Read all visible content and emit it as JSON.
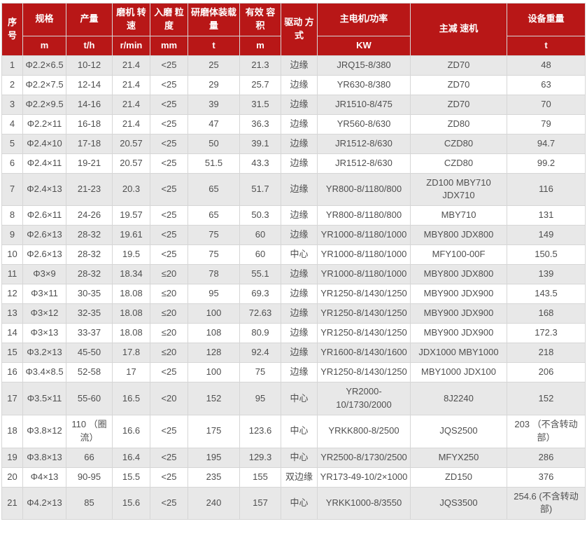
{
  "table": {
    "colors": {
      "header_bg": "#b81717",
      "header_text": "#ffffff",
      "row_alt_bg": "#e8e8e8",
      "row_bg": "#ffffff",
      "border": "#d6d6d6",
      "body_text": "#4f4f4f"
    },
    "columns": [
      {
        "key": "index",
        "label": "序号",
        "unit": ""
      },
      {
        "key": "spec",
        "label": "规格",
        "unit": "m"
      },
      {
        "key": "output",
        "label": "产量",
        "unit": "t/h"
      },
      {
        "key": "mill-speed",
        "label": "磨机 转速",
        "unit": "r/min"
      },
      {
        "key": "feed-size",
        "label": "入磨 粒度",
        "unit": "mm"
      },
      {
        "key": "media-load",
        "label": "研磨体装载量",
        "unit": "t"
      },
      {
        "key": "volume",
        "label": "有效 容积",
        "unit": "m"
      },
      {
        "key": "drive-mode",
        "label": "驱动 方式",
        "unit": ""
      },
      {
        "key": "main-motor",
        "label": "主电机/功率",
        "unit": "KW"
      },
      {
        "key": "reducer",
        "label": "主减 速机",
        "unit": ""
      },
      {
        "key": "weight",
        "label": "设备重量",
        "unit": "t"
      }
    ],
    "rows": [
      [
        "1",
        "Φ2.2×6.5",
        "10-12",
        "21.4",
        "<25",
        "25",
        "21.3",
        "边缘",
        "JRQ15-8/380",
        "ZD70",
        "48"
      ],
      [
        "2",
        "Φ2.2×7.5",
        "12-14",
        "21.4",
        "<25",
        "29",
        "25.7",
        "边缘",
        "YR630-8/380",
        "ZD70",
        "63"
      ],
      [
        "3",
        "Φ2.2×9.5",
        "14-16",
        "21.4",
        "<25",
        "39",
        "31.5",
        "边缘",
        "JR1510-8/475",
        "ZD70",
        "70"
      ],
      [
        "4",
        "Φ2.2×11",
        "16-18",
        "21.4",
        "<25",
        "47",
        "36.3",
        "边缘",
        "YR560-8/630",
        "ZD80",
        "79"
      ],
      [
        "5",
        "Φ2.4×10",
        "17-18",
        "20.57",
        "<25",
        "50",
        "39.1",
        "边缘",
        "JR1512-8/630",
        "CZD80",
        "94.7"
      ],
      [
        "6",
        "Φ2.4×11",
        "19-21",
        "20.57",
        "<25",
        "51.5",
        "43.3",
        "边缘",
        "JR1512-8/630",
        "CZD80",
        "99.2"
      ],
      [
        "7",
        "Φ2.4×13",
        "21-23",
        "20.3",
        "<25",
        "65",
        "51.7",
        "边缘",
        "YR800-8/1180/800",
        "ZD100 MBY710 JDX710",
        "116"
      ],
      [
        "8",
        "Φ2.6×11",
        "24-26",
        "19.57",
        "<25",
        "65",
        "50.3",
        "边缘",
        "YR800-8/1180/800",
        "MBY710",
        "131"
      ],
      [
        "9",
        "Φ2.6×13",
        "28-32",
        "19.61",
        "<25",
        "75",
        "60",
        "边缘",
        "YR1000-8/1180/1000",
        "MBY800 JDX800",
        "149"
      ],
      [
        "10",
        "Φ2.6×13",
        "28-32",
        "19.5",
        "<25",
        "75",
        "60",
        "中心",
        "YR1000-8/1180/1000",
        "MFY100-00F",
        "150.5"
      ],
      [
        "11",
        "Φ3×9",
        "28-32",
        "18.34",
        "≤20",
        "78",
        "55.1",
        "边缘",
        "YR1000-8/1180/1000",
        "MBY800 JDX800",
        "139"
      ],
      [
        "12",
        "Φ3×11",
        "30-35",
        "18.08",
        "≤20",
        "95",
        "69.3",
        "边缘",
        "YR1250-8/1430/1250",
        "MBY900 JDX900",
        "143.5"
      ],
      [
        "13",
        "Φ3×12",
        "32-35",
        "18.08",
        "≤20",
        "100",
        "72.63",
        "边缘",
        "YR1250-8/1430/1250",
        "MBY900 JDX900",
        "168"
      ],
      [
        "14",
        "Φ3×13",
        "33-37",
        "18.08",
        "≤20",
        "108",
        "80.9",
        "边缘",
        "YR1250-8/1430/1250",
        "MBY900 JDX900",
        "172.3"
      ],
      [
        "15",
        "Φ3.2×13",
        "45-50",
        "17.8",
        "≤20",
        "128",
        "92.4",
        "边缘",
        "YR1600-8/1430/1600",
        "JDX1000 MBY1000",
        "218"
      ],
      [
        "16",
        "Φ3.4×8.5",
        "52-58",
        "17",
        "<25",
        "100",
        "75",
        "边缘",
        "YR1250-8/1430/1250",
        "MBY1000 JDX100",
        "206"
      ],
      [
        "17",
        "Φ3.5×11",
        "55-60",
        "16.5",
        "<20",
        "152",
        "95",
        "中心",
        "YR2000-\n10/1730/2000",
        "8J2240",
        "152"
      ],
      [
        "18",
        "Φ3.8×12",
        "110 （圈流）",
        "16.6",
        "<25",
        "175",
        "123.6",
        "中心",
        "YRKK800-8/2500",
        "JQS2500",
        "203  （不含转动部）"
      ],
      [
        "19",
        "Φ3.8×13",
        "66",
        "16.4",
        "<25",
        "195",
        "129.3",
        "中心",
        "YR2500-8/1730/2500",
        "MFYX250",
        "286"
      ],
      [
        "20",
        "Φ4×13",
        "90-95",
        "15.5",
        "<25",
        "235",
        "155",
        "双边缘",
        "YR173-49-10/2×1000",
        "ZD150",
        "376"
      ],
      [
        "21",
        "Φ4.2×13",
        "85",
        "15.6",
        "<25",
        "240",
        "157",
        "中心",
        "YRKK1000-8/3550",
        "JQS3500",
        "254.6 (不含转动部)"
      ]
    ]
  }
}
